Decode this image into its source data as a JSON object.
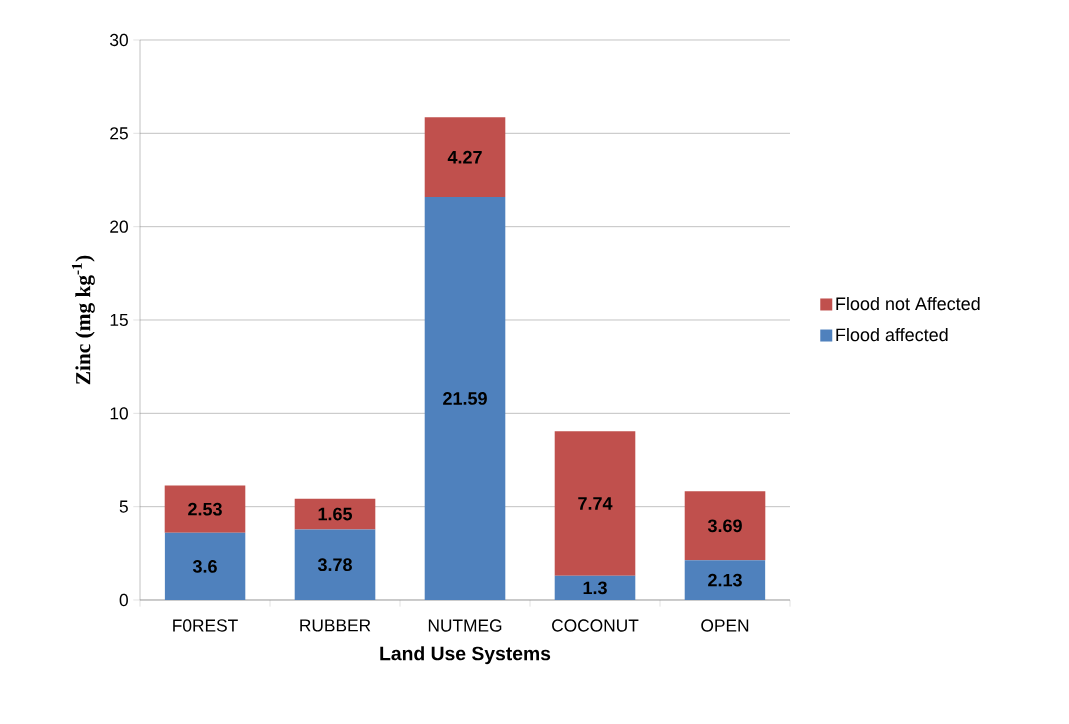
{
  "chart_data": {
    "type": "bar",
    "stacked": true,
    "xlabel": "Land Use Systems",
    "ylabel": "Zinc (mg kg$^{-1}$)",
    "categories": [
      "F0REST",
      "RUBBER",
      "NUTMEG",
      "COCONUT",
      "OPEN"
    ],
    "series": [
      {
        "name": "Flood affected",
        "color": "#4f81bd",
        "values": [
          3.6,
          3.78,
          21.59,
          1.3,
          2.13
        ]
      },
      {
        "name": "Flood not Affected",
        "color": "#c0504d",
        "values": [
          2.53,
          1.65,
          4.27,
          7.74,
          3.69
        ]
      }
    ],
    "ylim": [
      0,
      30
    ],
    "yticks": [
      0,
      5,
      10,
      15,
      20,
      25,
      30
    ],
    "grid": "y",
    "legend": "right",
    "data_labels": true
  }
}
